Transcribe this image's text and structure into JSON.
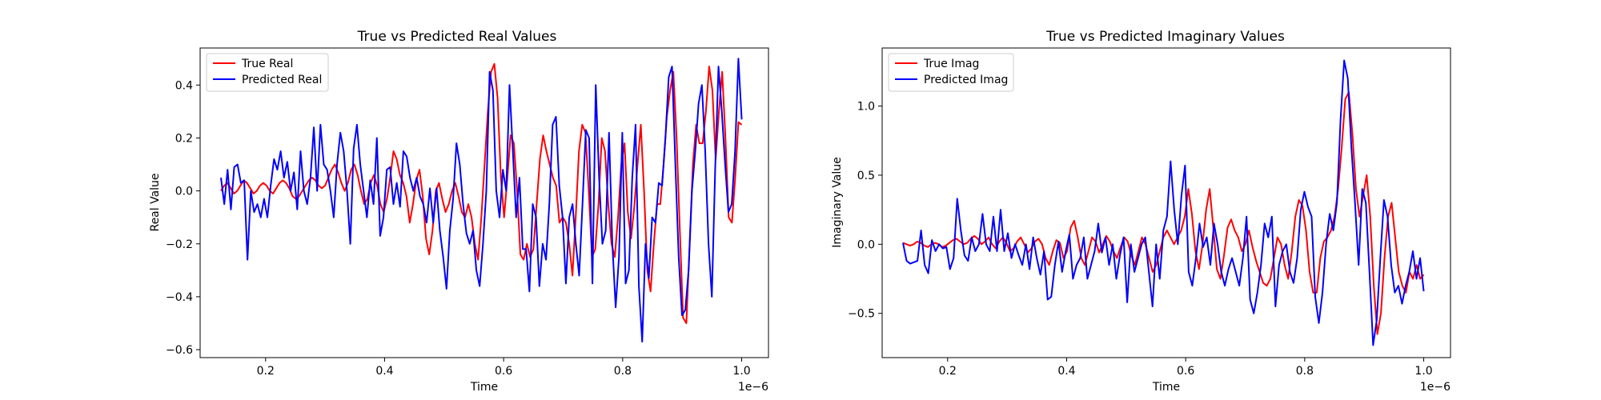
{
  "chart_data": [
    {
      "type": "line",
      "title": "True vs Predicted Real Values",
      "xlabel": "Time",
      "ylabel": "Real Value",
      "x_offset_label": "1e−6",
      "xlim": [
        0.09,
        1.045
      ],
      "ylim": [
        -0.63,
        0.54
      ],
      "xticks": [
        0.2,
        0.4,
        0.6,
        0.8,
        1.0
      ],
      "xtick_labels": [
        "0.2",
        "0.4",
        "0.6",
        "0.8",
        "1.0"
      ],
      "yticks": [
        -0.6,
        -0.4,
        -0.2,
        0.0,
        0.2,
        0.4
      ],
      "ytick_labels": [
        "−0.6",
        "−0.4",
        "−0.2",
        "0.0",
        "0.2",
        "0.4"
      ],
      "grid": false,
      "legend_position": "top-left",
      "x_start": 0.125,
      "x_end": 1.0,
      "series": [
        {
          "name": "True Real",
          "color": "#ff0000",
          "values": [
            0.0,
            0.02,
            0.03,
            0.01,
            -0.01,
            0.0,
            0.02,
            0.04,
            0.03,
            0.01,
            -0.01,
            0.0,
            0.02,
            0.03,
            0.02,
            0.0,
            -0.01,
            0.01,
            0.03,
            0.04,
            0.03,
            0.01,
            -0.02,
            -0.03,
            -0.02,
            0.0,
            0.02,
            0.04,
            0.05,
            0.04,
            0.02,
            0.01,
            0.02,
            0.05,
            0.08,
            0.1,
            0.07,
            0.03,
            0.0,
            0.03,
            0.08,
            0.1,
            0.06,
            0.0,
            -0.05,
            -0.03,
            0.03,
            0.06,
            0.02,
            -0.05,
            -0.08,
            -0.03,
            0.05,
            0.15,
            0.12,
            0.06,
            0.03,
            -0.02,
            -0.12,
            -0.05,
            0.04,
            0.08,
            -0.02,
            -0.18,
            -0.24,
            -0.15,
            0.0,
            0.03,
            -0.03,
            -0.08,
            -0.05,
            0.0,
            0.03,
            -0.02,
            -0.08,
            -0.1,
            -0.05,
            -0.1,
            -0.2,
            -0.26,
            -0.1,
            0.1,
            0.3,
            0.45,
            0.48,
            0.35,
            0.05,
            -0.1,
            0.05,
            0.21,
            0.18,
            0.0,
            -0.24,
            -0.26,
            -0.2,
            -0.25,
            -0.22,
            -0.05,
            0.12,
            0.21,
            0.15,
            0.1,
            0.05,
            0.02,
            -0.12,
            -0.1,
            -0.12,
            -0.2,
            -0.32,
            -0.1,
            0.15,
            0.25,
            0.22,
            0.0,
            -0.25,
            -0.22,
            -0.05,
            0.2,
            0.15,
            -0.05,
            -0.2,
            -0.25,
            -0.1,
            0.1,
            0.18,
            -0.08,
            -0.18,
            -0.06,
            0.1,
            0.25,
            0.0,
            -0.3,
            -0.38,
            -0.2,
            -0.05,
            -0.05,
            0.1,
            0.28,
            0.38,
            0.45,
            0.2,
            -0.15,
            -0.48,
            -0.5,
            -0.2,
            0.1,
            0.25,
            0.18,
            0.18,
            0.3,
            0.47,
            0.38,
            0.12,
            0.3,
            0.45,
            0.2,
            -0.1,
            -0.12,
            0.05,
            0.26,
            0.25
          ]
        },
        {
          "name": "Predicted Real",
          "color": "#0000ff",
          "values": [
            0.05,
            -0.05,
            0.08,
            -0.07,
            0.09,
            0.1,
            0.03,
            0.04,
            -0.26,
            0.0,
            -0.08,
            -0.05,
            -0.1,
            -0.03,
            -0.1,
            0.02,
            0.12,
            0.08,
            0.15,
            0.05,
            0.11,
            0.0,
            0.07,
            -0.07,
            0.15,
            0.0,
            -0.05,
            0.05,
            0.24,
            0.0,
            0.25,
            0.1,
            0.08,
            0.0,
            -0.1,
            0.1,
            0.22,
            0.15,
            0.0,
            -0.2,
            0.16,
            0.25,
            0.1,
            0.0,
            -0.1,
            0.04,
            -0.05,
            0.2,
            -0.17,
            -0.1,
            0.08,
            0.09,
            -0.05,
            0.03,
            -0.06,
            0.15,
            0.13,
            0.05,
            0.0,
            0.05,
            -0.02,
            -0.05,
            -0.12,
            0.01,
            -0.12,
            0.01,
            -0.15,
            -0.25,
            -0.37,
            -0.15,
            -0.03,
            0.18,
            0.1,
            -0.05,
            -0.16,
            -0.2,
            -0.15,
            -0.3,
            -0.36,
            -0.2,
            0.0,
            0.45,
            0.38,
            0.0,
            -0.1,
            0.08,
            0.0,
            0.4,
            0.15,
            -0.1,
            0.05,
            -0.22,
            -0.22,
            -0.38,
            -0.05,
            -0.1,
            -0.36,
            -0.2,
            -0.26,
            -0.05,
            0.25,
            0.28,
            0.02,
            -0.1,
            -0.35,
            -0.1,
            -0.05,
            -0.2,
            -0.32,
            -0.05,
            0.23,
            0.2,
            -0.35,
            0.4,
            0.05,
            -0.2,
            -0.15,
            0.22,
            -0.2,
            -0.44,
            -0.25,
            0.22,
            -0.35,
            -0.3,
            0.05,
            0.25,
            -0.36,
            -0.57,
            -0.2,
            -0.33,
            -0.1,
            -0.12,
            0.03,
            0.02,
            0.2,
            0.43,
            0.47,
            0.1,
            -0.25,
            -0.47,
            -0.45,
            -0.3,
            0.0,
            0.15,
            0.33,
            0.4,
            0.15,
            -0.2,
            -0.4,
            0.08,
            0.47,
            0.3,
            0.1,
            -0.08,
            -0.05,
            0.15,
            0.5,
            0.27
          ]
        }
      ]
    },
    {
      "type": "line",
      "title": "True vs Predicted Imaginary Values",
      "xlabel": "Time",
      "ylabel": "Imaginary Value",
      "x_offset_label": "1e−6",
      "xlim": [
        0.09,
        1.045
      ],
      "ylim": [
        -0.82,
        1.42
      ],
      "xticks": [
        0.2,
        0.4,
        0.6,
        0.8,
        1.0
      ],
      "xtick_labels": [
        "0.2",
        "0.4",
        "0.6",
        "0.8",
        "1.0"
      ],
      "yticks": [
        -0.5,
        0.0,
        0.5,
        1.0
      ],
      "ytick_labels": [
        "−0.5",
        "0.0",
        "0.5",
        "1.0"
      ],
      "grid": false,
      "legend_position": "top-left",
      "x_start": 0.125,
      "x_end": 1.0,
      "series": [
        {
          "name": "True Imag",
          "color": "#ff0000",
          "values": [
            0.01,
            0.0,
            -0.01,
            0.0,
            0.02,
            0.01,
            -0.01,
            -0.02,
            0.0,
            0.01,
            0.0,
            -0.02,
            -0.01,
            0.01,
            0.03,
            0.04,
            0.02,
            0.0,
            0.01,
            0.04,
            0.06,
            0.04,
            0.0,
            0.02,
            0.05,
            0.0,
            -0.03,
            0.02,
            0.05,
            0.01,
            -0.05,
            -0.03,
            0.02,
            0.05,
            0.0,
            -0.06,
            -0.03,
            0.02,
            0.04,
            0.0,
            -0.1,
            -0.15,
            -0.05,
            0.03,
            0.01,
            -0.1,
            -0.05,
            0.12,
            0.17,
            0.05,
            -0.1,
            -0.15,
            -0.05,
            0.05,
            0.02,
            -0.06,
            0.0,
            0.06,
            0.02,
            -0.05,
            -0.1,
            -0.02,
            0.05,
            0.02,
            -0.08,
            -0.15,
            -0.05,
            0.05,
            0.0,
            -0.1,
            -0.2,
            -0.15,
            -0.05,
            0.05,
            0.1,
            0.05,
            0.0,
            0.05,
            0.1,
            0.2,
            0.4,
            0.22,
            -0.05,
            -0.18,
            0.0,
            0.25,
            0.4,
            0.12,
            -0.18,
            -0.25,
            -0.08,
            0.12,
            0.18,
            0.1,
            0.05,
            -0.05,
            0.0,
            0.1,
            -0.02,
            -0.12,
            -0.2,
            -0.28,
            -0.3,
            -0.25,
            -0.1,
            0.05,
            0.0,
            -0.15,
            -0.25,
            -0.05,
            0.2,
            0.32,
            0.28,
            0.1,
            -0.2,
            -0.35,
            -0.35,
            -0.1,
            0.02,
            0.05,
            0.1,
            0.2,
            0.4,
            0.7,
            1.05,
            1.1,
            0.8,
            0.4,
            0.2,
            0.35,
            0.5,
            0.2,
            -0.3,
            -0.65,
            -0.5,
            -0.1,
            0.2,
            0.3,
            0.05,
            -0.2,
            -0.3,
            -0.35,
            -0.2,
            -0.25,
            -0.15,
            -0.25,
            -0.22
          ]
        },
        {
          "name": "Predicted Imag",
          "color": "#0000ff",
          "values": [
            0.01,
            -0.12,
            -0.14,
            -0.13,
            -0.12,
            0.1,
            -0.15,
            -0.21,
            0.03,
            -0.05,
            0.0,
            -0.03,
            -0.02,
            -0.18,
            -0.1,
            0.33,
            0.1,
            -0.08,
            -0.12,
            0.05,
            -0.05,
            0.0,
            0.22,
            0.0,
            -0.05,
            0.2,
            -0.05,
            0.25,
            -0.05,
            0.08,
            -0.1,
            0.0,
            -0.08,
            -0.15,
            0.0,
            -0.18,
            0.05,
            -0.1,
            -0.22,
            -0.05,
            -0.4,
            -0.38,
            -0.15,
            0.02,
            -0.2,
            -0.05,
            0.07,
            -0.25,
            -0.15,
            -0.1,
            0.05,
            -0.25,
            -0.15,
            -0.05,
            0.15,
            -0.06,
            0.05,
            -0.15,
            0.0,
            -0.25,
            -0.08,
            0.05,
            -0.42,
            0.0,
            -0.2,
            -0.1,
            0.0,
            0.05,
            -0.2,
            -0.45,
            0.0,
            -0.25,
            0.1,
            0.2,
            0.6,
            0.25,
            0.0,
            0.35,
            0.57,
            -0.2,
            -0.3,
            -0.1,
            0.15,
            -0.02,
            0.05,
            -0.15,
            0.15,
            0.0,
            -0.2,
            -0.3,
            -0.18,
            -0.1,
            -0.2,
            -0.3,
            -0.1,
            0.2,
            -0.4,
            -0.5,
            -0.35,
            -0.15,
            0.15,
            0.05,
            0.2,
            -0.45,
            -0.15,
            -0.05,
            0.0,
            -0.2,
            -0.28,
            -0.1,
            0.25,
            0.38,
            0.27,
            0.2,
            -0.38,
            -0.57,
            -0.35,
            0.0,
            0.22,
            0.1,
            0.3,
            0.9,
            1.33,
            1.2,
            0.7,
            0.3,
            -0.15,
            0.4,
            0.3,
            -0.2,
            -0.73,
            -0.55,
            -0.1,
            0.32,
            0.2,
            -0.15,
            -0.35,
            -0.3,
            -0.43,
            -0.3,
            -0.2,
            -0.05,
            -0.25,
            -0.1,
            -0.34
          ]
        }
      ]
    }
  ]
}
